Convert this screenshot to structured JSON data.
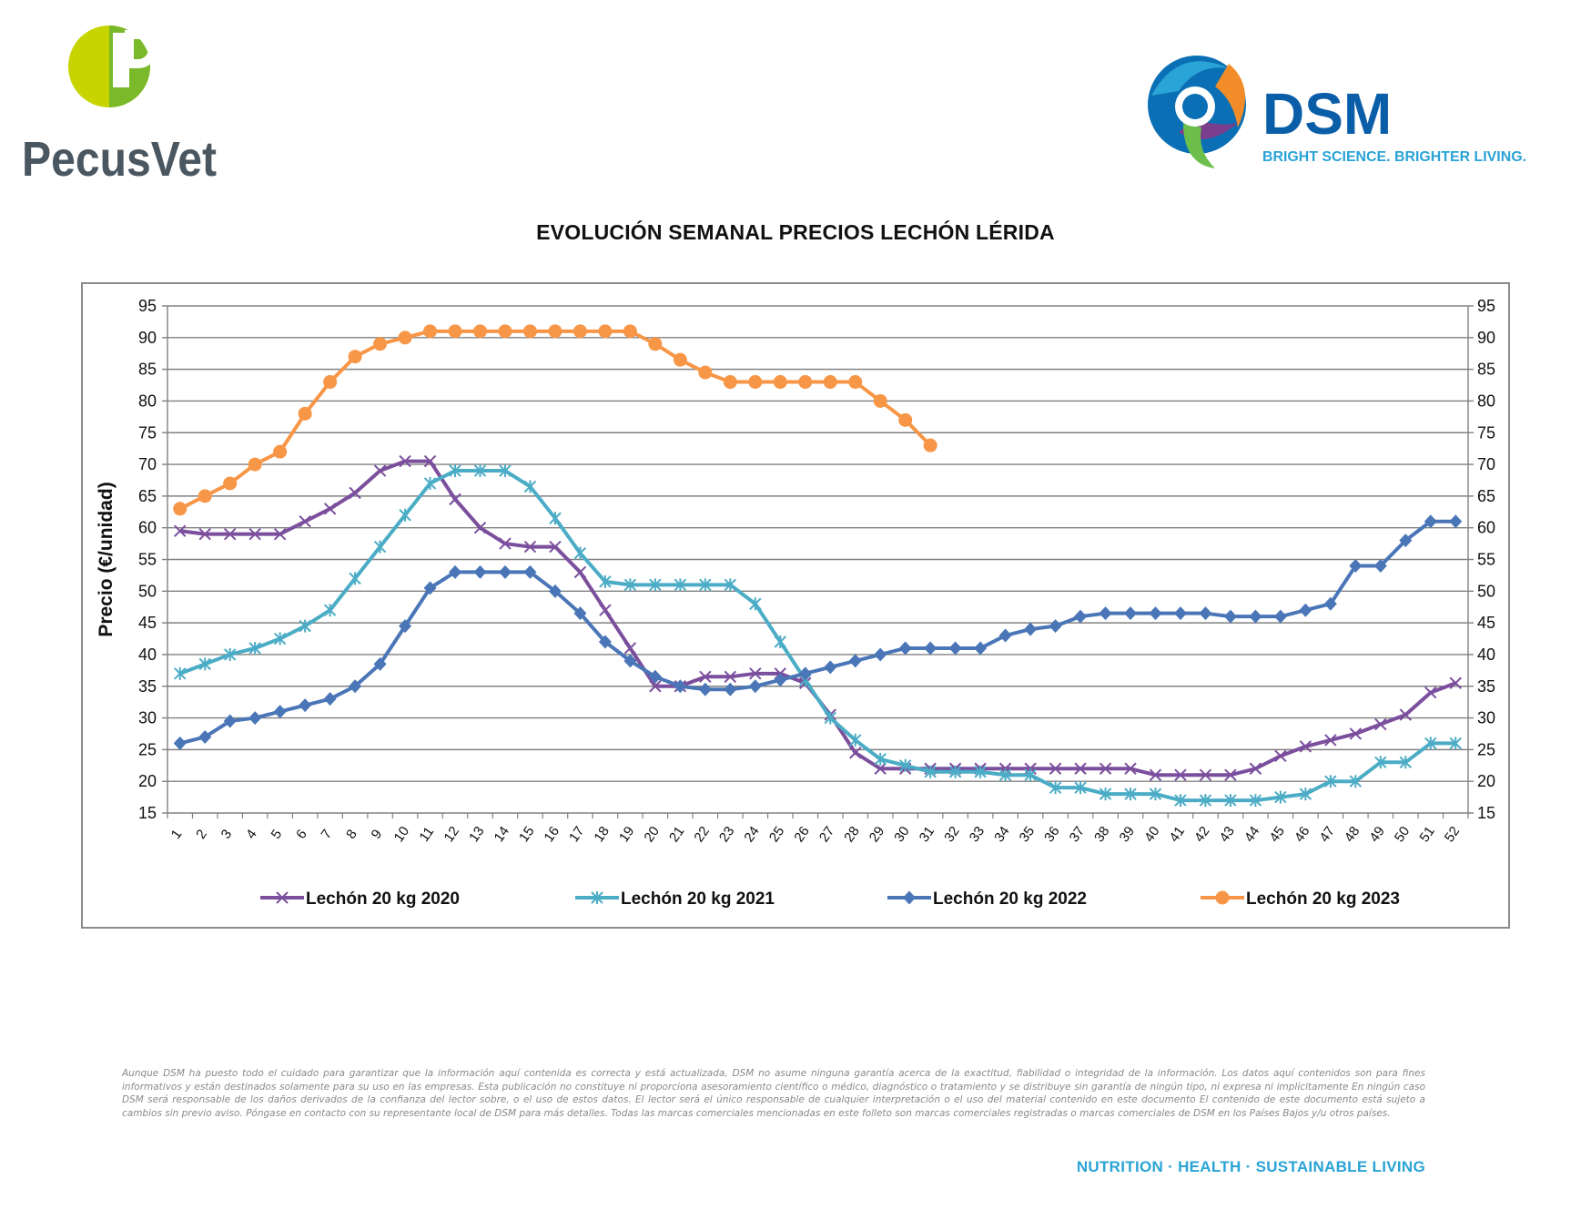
{
  "header": {
    "left_logo": {
      "text": "PecusVet",
      "icon": "pecusvet-p-logo-icon",
      "colors": [
        "#c8d400",
        "#7ab929",
        "#4a5761"
      ]
    },
    "right_logo": {
      "text": "DSM",
      "tagline": "BRIGHT SCIENCE. BRIGHTER LIVING.",
      "icon": "dsm-swirl-logo-icon",
      "colors": [
        "#0a6fb4",
        "#2aa3d6",
        "#f28c28",
        "#7b3e8c",
        "#6cbf4b"
      ]
    }
  },
  "chart_data": {
    "type": "line",
    "title": "EVOLUCIÓN SEMANAL PRECIOS LECHÓN LÉRIDA",
    "ylabel": "Precio (€/unidad)",
    "xlabel": "",
    "ylim": [
      15,
      95
    ],
    "yticks": [
      15,
      20,
      25,
      30,
      35,
      40,
      45,
      50,
      55,
      60,
      65,
      70,
      75,
      80,
      85,
      90,
      95
    ],
    "grid": "horizontal",
    "secondary_y_axis": true,
    "legend_position": "bottom",
    "categories": [
      "1",
      "2",
      "3",
      "4",
      "5",
      "6",
      "7",
      "8",
      "9",
      "10",
      "11",
      "12",
      "13",
      "14",
      "15",
      "16",
      "17",
      "18",
      "19",
      "20",
      "21",
      "22",
      "23",
      "24",
      "25",
      "26",
      "27",
      "28",
      "29",
      "30",
      "31",
      "32",
      "33",
      "34",
      "35",
      "36",
      "37",
      "38",
      "39",
      "40",
      "41",
      "42",
      "43",
      "44",
      "45",
      "46",
      "47",
      "48",
      "49",
      "50",
      "51",
      "52"
    ],
    "series": [
      {
        "name": "Lechón 20 kg 2020",
        "color": "#7b4f9d",
        "marker": "x",
        "values": [
          59.5,
          59,
          59,
          59,
          59,
          61,
          63,
          65.5,
          69,
          70.5,
          70.5,
          64.5,
          60,
          57.5,
          57,
          57,
          53,
          47,
          41,
          35,
          35,
          36.5,
          36.5,
          37,
          37,
          35.5,
          30.5,
          24.5,
          22,
          22,
          22,
          22,
          22,
          22,
          22,
          22,
          22,
          22,
          22,
          21,
          21,
          21,
          21,
          22,
          24,
          25.5,
          26.5,
          27.5,
          29,
          30.5,
          34,
          35.5
        ]
      },
      {
        "name": "Lechón 20 kg 2021",
        "color": "#4bacc6",
        "marker": "star",
        "values": [
          37,
          38.5,
          40,
          41,
          42.5,
          44.5,
          47,
          52,
          57,
          62,
          67,
          69,
          69,
          69,
          66.5,
          61.5,
          56,
          51.5,
          51,
          51,
          51,
          51,
          51,
          48,
          42,
          36,
          30,
          26.5,
          23.5,
          22.5,
          21.5,
          21.5,
          21.5,
          21,
          21,
          19,
          19,
          18,
          18,
          18,
          17,
          17,
          17,
          17,
          17.5,
          18,
          20,
          20,
          23,
          23,
          26,
          26
        ]
      },
      {
        "name": "Lechón 20 kg 2022",
        "color": "#4a76b8",
        "marker": "diamond",
        "values": [
          26,
          27,
          29.5,
          30,
          31,
          32,
          33,
          35,
          38.5,
          44.5,
          50.5,
          53,
          53,
          53,
          53,
          50,
          46.5,
          42,
          39,
          36.5,
          35,
          34.5,
          34.5,
          35,
          36,
          37,
          38,
          39,
          40,
          41,
          41,
          41,
          41,
          43,
          44,
          44.5,
          46,
          46.5,
          46.5,
          46.5,
          46.5,
          46.5,
          46,
          46,
          46,
          47,
          48,
          54,
          54,
          58,
          61,
          61
        ]
      },
      {
        "name": "Lechón 20 kg 2023",
        "color": "#f79646",
        "marker": "circle",
        "values": [
          63,
          65,
          67,
          70,
          72,
          78,
          83,
          87,
          89,
          90,
          91,
          91,
          91,
          91,
          91,
          91,
          91,
          91,
          91,
          89,
          86.5,
          84.5,
          83,
          83,
          83,
          83,
          83,
          83,
          80,
          77,
          73,
          null,
          null,
          null,
          null,
          null,
          null,
          null,
          null,
          null,
          null,
          null,
          null,
          null,
          null,
          null,
          null,
          null,
          null,
          null,
          null,
          null
        ]
      }
    ]
  },
  "footer": {
    "disclaimer": "Aunque DSM ha puesto todo el cuidado para garantizar que la información aquí contenida es correcta y está actualizada, DSM no asume ninguna garantía acerca de la exactitud, fiabilidad o integridad de la información. Los datos aquí contenidos son para fines informativos y están destinados solamente para su uso en las empresas. Esta publicación no constituye ni proporciona asesoramiento científico o médico, diagnóstico o tratamiento y se distribuye sin garantía de ningún tipo, ni expresa ni implícitamente En ningún caso DSM será responsable de los daños derivados de la confianza del lector sobre, o el uso de estos datos. El lector será el único responsable de cualquier interpretación o el uso del material contenido en este documento El contenido de este documento está sujeto a cambios sin previo aviso. Póngase en contacto con su representante local de DSM para más detalles. Todas las marcas comerciales mencionadas en este folleto son marcas comerciales registradas o marcas comerciales de DSM en los Países Bajos y/u otros países.",
    "tagline": "NUTRITION · HEALTH · SUSTAINABLE LIVING"
  }
}
